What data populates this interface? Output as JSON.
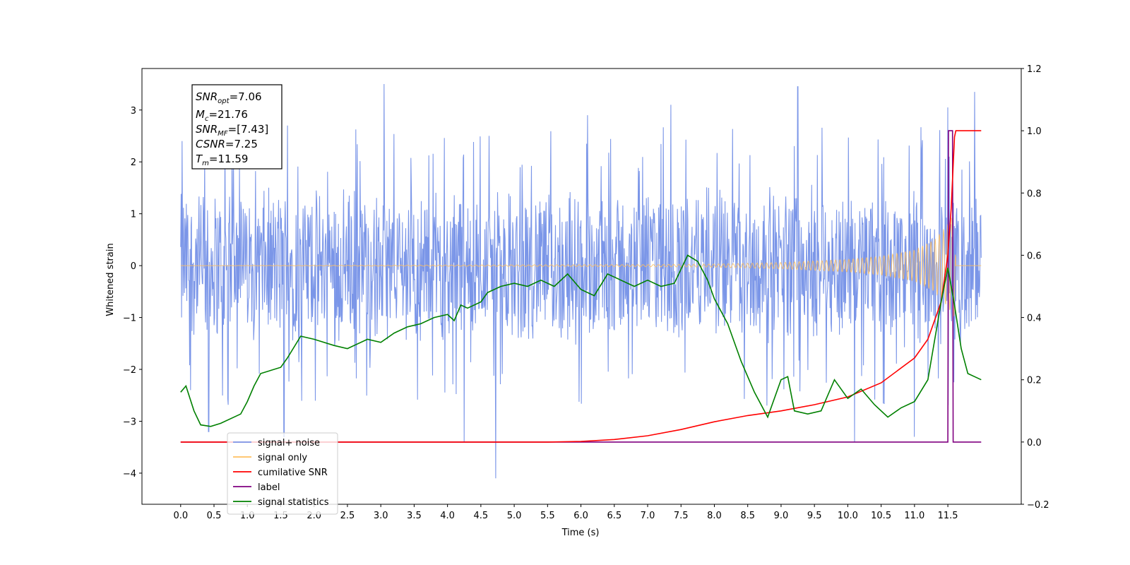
{
  "chart_data": {
    "type": "line",
    "xlabel": "Time (s)",
    "ylabel": "Whitened strain",
    "xlim": [
      -0.58,
      12.6
    ],
    "ylim_left": [
      -4.6,
      3.8
    ],
    "ylim_right": [
      -0.2,
      1.2
    ],
    "x_ticks": [
      "0.0",
      "0.5",
      "1.0",
      "1.5",
      "2.0",
      "2.5",
      "3.0",
      "3.5",
      "4.0",
      "4.5",
      "5.0",
      "5.5",
      "6.0",
      "6.5",
      "7.0",
      "7.5",
      "8.0",
      "8.5",
      "9.0",
      "9.5",
      "10.0",
      "10.5",
      "11.0",
      "11.5"
    ],
    "y_ticks_left": [
      "3",
      "2",
      "1",
      "0",
      "−1",
      "−2",
      "−3",
      "−4"
    ],
    "y_ticks_right": [
      "1.2",
      "1.0",
      "0.8",
      "0.6",
      "0.4",
      "0.2",
      "0.0",
      "−0.2"
    ],
    "info_box": {
      "snr_opt": "=7.06",
      "mc": "=21.76",
      "snr_mf": "=[7.43]",
      "csnr": "=7.25",
      "tm": "=11.59"
    },
    "legend": {
      "placement": "lower-left",
      "entries": [
        {
          "label": "signal+ noise",
          "color": "#7b96e8"
        },
        {
          "label": "signal only",
          "color": "#ffbf60"
        },
        {
          "label": "cumilative SNR",
          "color": "#ff0000"
        },
        {
          "label": "label",
          "color": "#800080"
        },
        {
          "label": "signal statistics",
          "color": "#008000"
        }
      ]
    },
    "series": [
      {
        "name": "signal+ noise",
        "axis": "left",
        "description": "whitened strain noise, approx ±1.6 band with spikes to ±3.5",
        "t_range": [
          0.0,
          12.0
        ],
        "band": 1.6,
        "peak_values": [
          {
            "x": 0.02,
            "y": 2.4
          },
          {
            "x": 0.15,
            "y": -2.4
          },
          {
            "x": 0.42,
            "y": -3.2
          },
          {
            "x": 1.55,
            "y": -3.3
          },
          {
            "x": 1.6,
            "y": 2.7
          },
          {
            "x": 3.05,
            "y": 3.5
          },
          {
            "x": 4.25,
            "y": -3.4
          },
          {
            "x": 4.72,
            "y": -4.1
          },
          {
            "x": 6.1,
            "y": 2.9
          },
          {
            "x": 7.35,
            "y": 3.1
          },
          {
            "x": 9.25,
            "y": 3.45
          },
          {
            "x": 10.1,
            "y": -3.4
          },
          {
            "x": 11.0,
            "y": -3.3
          },
          {
            "x": 11.5,
            "y": 3.05
          },
          {
            "x": 11.9,
            "y": 3.35
          }
        ]
      },
      {
        "name": "signal only",
        "axis": "left",
        "description": "chirp with growing amplitude near merger",
        "envelope": [
          [
            0.0,
            0.0
          ],
          [
            7.0,
            0.02
          ],
          [
            8.0,
            0.03
          ],
          [
            9.0,
            0.06
          ],
          [
            10.0,
            0.12
          ],
          [
            10.5,
            0.18
          ],
          [
            11.0,
            0.3
          ],
          [
            11.3,
            0.5
          ],
          [
            11.5,
            0.8
          ],
          [
            11.6,
            1.0
          ],
          [
            11.62,
            0.0
          ],
          [
            12.0,
            0.0
          ]
        ]
      },
      {
        "name": "cumilative SNR",
        "axis": "right",
        "x": [
          0.0,
          5.5,
          6.0,
          6.5,
          7.0,
          7.5,
          8.0,
          8.5,
          9.0,
          9.5,
          10.0,
          10.5,
          11.0,
          11.2,
          11.4,
          11.5,
          11.55,
          11.6,
          11.62,
          11.7,
          12.0
        ],
        "y": [
          0.0,
          0.0,
          0.002,
          0.008,
          0.02,
          0.04,
          0.065,
          0.085,
          0.1,
          0.12,
          0.145,
          0.19,
          0.27,
          0.33,
          0.45,
          0.6,
          0.75,
          0.98,
          1.0,
          1.0,
          1.0
        ]
      },
      {
        "name": "label",
        "axis": "right",
        "x": [
          0.0,
          11.5,
          11.51,
          11.57,
          11.58,
          12.0
        ],
        "y": [
          0.0,
          0.0,
          1.0,
          1.0,
          0.0,
          0.0
        ]
      },
      {
        "name": "signal statistics",
        "axis": "right",
        "x": [
          0.0,
          0.08,
          0.2,
          0.3,
          0.45,
          0.6,
          0.9,
          1.0,
          1.1,
          1.2,
          1.5,
          1.6,
          1.8,
          2.0,
          2.3,
          2.5,
          2.8,
          3.0,
          3.2,
          3.4,
          3.6,
          3.8,
          4.0,
          4.1,
          4.2,
          4.3,
          4.5,
          4.6,
          4.8,
          5.0,
          5.2,
          5.4,
          5.6,
          5.8,
          6.0,
          6.2,
          6.4,
          6.5,
          6.6,
          6.8,
          7.0,
          7.2,
          7.4,
          7.6,
          7.75,
          7.9,
          8.0,
          8.2,
          8.4,
          8.6,
          8.8,
          9.0,
          9.1,
          9.2,
          9.4,
          9.6,
          9.8,
          10.0,
          10.2,
          10.4,
          10.6,
          10.8,
          11.0,
          11.2,
          11.4,
          11.5,
          11.6,
          11.7,
          11.8,
          11.9,
          12.0
        ],
        "y": [
          0.16,
          0.18,
          0.1,
          0.055,
          0.05,
          0.06,
          0.09,
          0.13,
          0.18,
          0.22,
          0.24,
          0.27,
          0.34,
          0.33,
          0.31,
          0.3,
          0.33,
          0.32,
          0.35,
          0.37,
          0.38,
          0.4,
          0.41,
          0.39,
          0.44,
          0.43,
          0.45,
          0.48,
          0.5,
          0.51,
          0.5,
          0.52,
          0.5,
          0.54,
          0.49,
          0.47,
          0.54,
          0.53,
          0.52,
          0.5,
          0.52,
          0.5,
          0.51,
          0.6,
          0.58,
          0.52,
          0.46,
          0.38,
          0.26,
          0.16,
          0.08,
          0.2,
          0.21,
          0.1,
          0.09,
          0.1,
          0.2,
          0.14,
          0.17,
          0.12,
          0.08,
          0.11,
          0.13,
          0.2,
          0.45,
          0.56,
          0.44,
          0.3,
          0.22,
          0.21,
          0.2
        ]
      }
    ]
  }
}
